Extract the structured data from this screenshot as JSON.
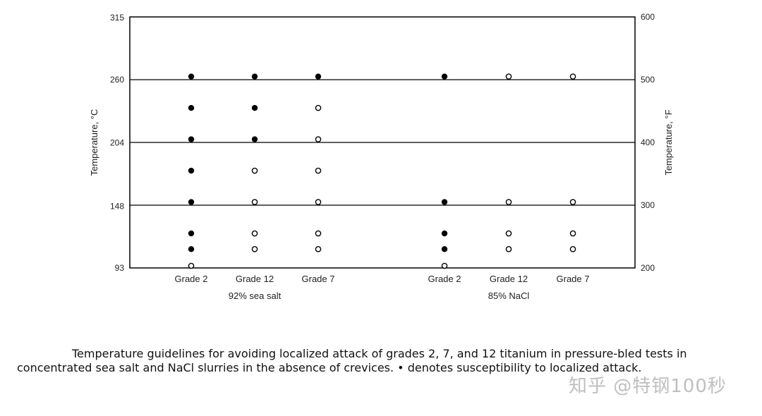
{
  "chart_data": {
    "type": "scatter",
    "left_axis": {
      "label": "Temperature, °C",
      "ticks": [
        93,
        148,
        204,
        260,
        315
      ]
    },
    "right_axis": {
      "label": "Temperature, °F",
      "ticks": [
        200,
        300,
        400,
        500,
        600
      ],
      "ylim": [
        200,
        600
      ]
    },
    "gridlines_f": [
      300,
      400,
      500
    ],
    "grid": "horizontal at 300, 400, 500 °F",
    "groups": [
      {
        "label": "92% sea salt",
        "categories": [
          "Grade 2",
          "Grade 12",
          "Grade 7"
        ]
      },
      {
        "label": "85% NaCl",
        "categories": [
          "Grade 2",
          "Grade 12",
          "Grade 7"
        ]
      }
    ],
    "legend_note": "• denotes susceptibility to localized attack",
    "series": [
      {
        "group": 0,
        "category": 0,
        "points": [
          {
            "temp_f": 505,
            "susceptible": true
          },
          {
            "temp_f": 455,
            "susceptible": true
          },
          {
            "temp_f": 405,
            "susceptible": true
          },
          {
            "temp_f": 355,
            "susceptible": true
          },
          {
            "temp_f": 305,
            "susceptible": true
          },
          {
            "temp_f": 255,
            "susceptible": true
          },
          {
            "temp_f": 230,
            "susceptible": true
          },
          {
            "temp_f": 200,
            "susceptible": false
          }
        ]
      },
      {
        "group": 0,
        "category": 1,
        "points": [
          {
            "temp_f": 505,
            "susceptible": true
          },
          {
            "temp_f": 455,
            "susceptible": true
          },
          {
            "temp_f": 405,
            "susceptible": true
          },
          {
            "temp_f": 355,
            "susceptible": false
          },
          {
            "temp_f": 305,
            "susceptible": false
          },
          {
            "temp_f": 255,
            "susceptible": false
          },
          {
            "temp_f": 230,
            "susceptible": false
          }
        ]
      },
      {
        "group": 0,
        "category": 2,
        "points": [
          {
            "temp_f": 505,
            "susceptible": true
          },
          {
            "temp_f": 455,
            "susceptible": false
          },
          {
            "temp_f": 405,
            "susceptible": false
          },
          {
            "temp_f": 355,
            "susceptible": false
          },
          {
            "temp_f": 305,
            "susceptible": false
          },
          {
            "temp_f": 255,
            "susceptible": false
          },
          {
            "temp_f": 230,
            "susceptible": false
          }
        ]
      },
      {
        "group": 1,
        "category": 0,
        "points": [
          {
            "temp_f": 505,
            "susceptible": true
          },
          {
            "temp_f": 305,
            "susceptible": true
          },
          {
            "temp_f": 255,
            "susceptible": true
          },
          {
            "temp_f": 230,
            "susceptible": true
          },
          {
            "temp_f": 200,
            "susceptible": false
          }
        ]
      },
      {
        "group": 1,
        "category": 1,
        "points": [
          {
            "temp_f": 505,
            "susceptible": false
          },
          {
            "temp_f": 305,
            "susceptible": false
          },
          {
            "temp_f": 255,
            "susceptible": false
          },
          {
            "temp_f": 230,
            "susceptible": false
          }
        ]
      },
      {
        "group": 1,
        "category": 2,
        "points": [
          {
            "temp_f": 505,
            "susceptible": false
          },
          {
            "temp_f": 305,
            "susceptible": false
          },
          {
            "temp_f": 255,
            "susceptible": false
          },
          {
            "temp_f": 230,
            "susceptible": false
          }
        ]
      }
    ]
  },
  "caption": {
    "text": "Temperature guidelines for avoiding localized attack of grades 2, 7, and 12 titanium in pressure-bled tests in concentrated sea salt and NaCl slurries in the absence of crevices. • denotes susceptibility to localized attack."
  },
  "watermark": {
    "text": "知乎 @特钢100秒"
  },
  "colors": {
    "marker": "#000000",
    "axis": "#000000",
    "background": "#ffffff"
  }
}
